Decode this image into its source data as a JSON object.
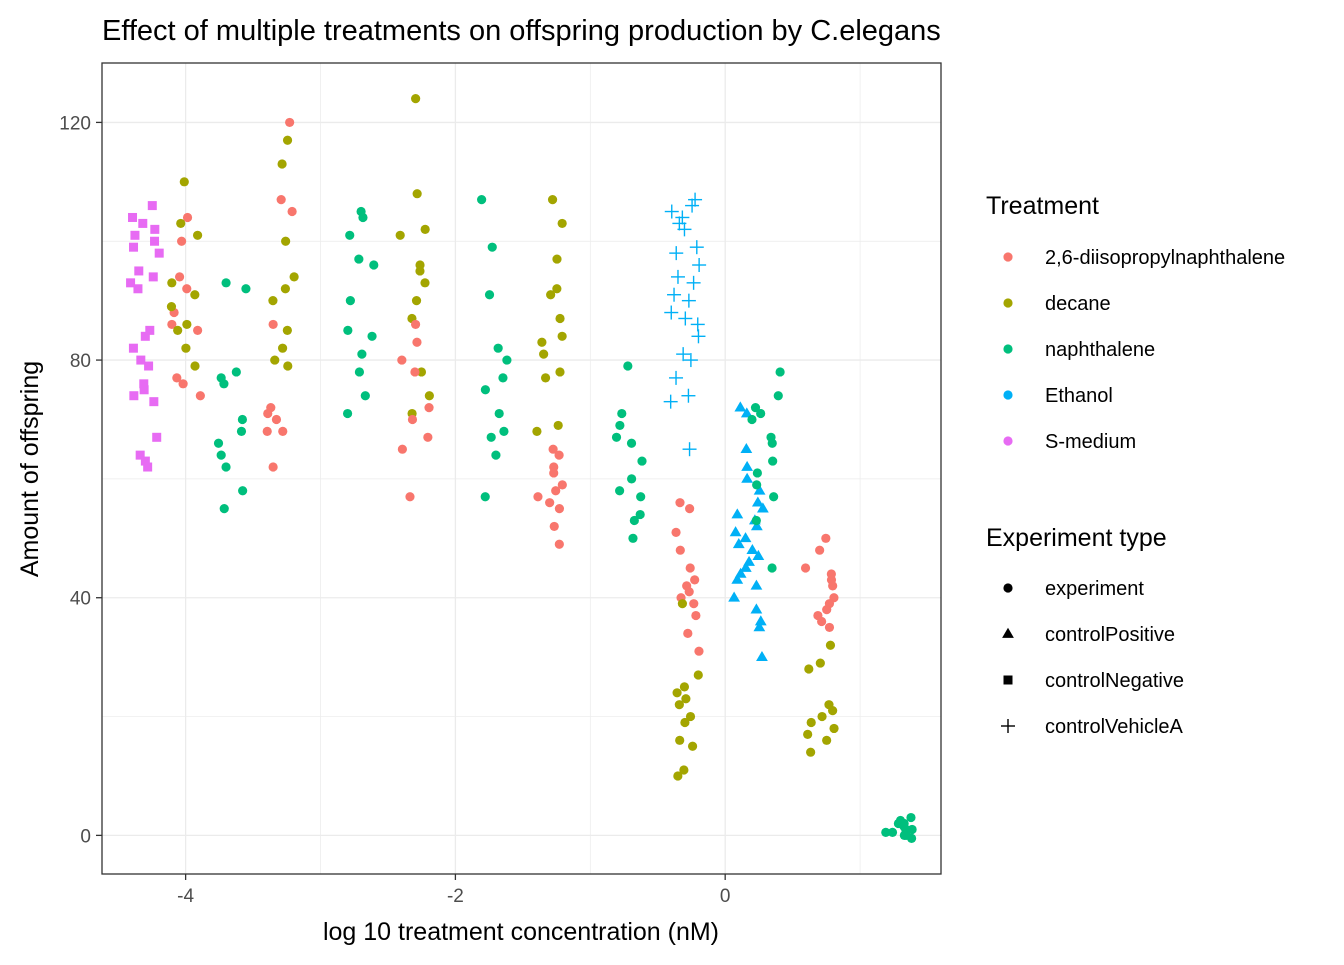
{
  "chart_data": {
    "type": "scatter",
    "title": "Effect of multiple treatments on offspring production by C.elegans",
    "xlabel": "log 10 treatment concentration (nM)",
    "ylabel": "Amount of offspring",
    "xlim": [
      -4.62,
      1.6
    ],
    "ylim": [
      -6.5,
      130
    ],
    "x_ticks": [
      -4,
      -2,
      0
    ],
    "y_ticks": [
      0,
      40,
      80,
      120
    ],
    "grid": true,
    "legend_position": "right",
    "legend": {
      "color": {
        "title": "Treatment",
        "entries": [
          {
            "label": "2,6-diisopropylnaphthalene",
            "color": "#F8766D"
          },
          {
            "label": "decane",
            "color": "#A3A500"
          },
          {
            "label": "naphthalene",
            "color": "#00BF7D"
          },
          {
            "label": "Ethanol",
            "color": "#00B0F6"
          },
          {
            "label": "S-medium",
            "color": "#E76BF3"
          }
        ]
      },
      "shape": {
        "title": "Experiment type",
        "entries": [
          {
            "label": "experiment",
            "shape": "circle"
          },
          {
            "label": "controlPositive",
            "shape": "triangle"
          },
          {
            "label": "controlNegative",
            "shape": "square"
          },
          {
            "label": "controlVehicleA",
            "shape": "plus"
          }
        ]
      }
    },
    "series": [
      {
        "treatment": "S-medium",
        "type": "controlNegative",
        "x_center": -4.3,
        "values": [
          106,
          104,
          103,
          102,
          101,
          100,
          99,
          98,
          95,
          94,
          93,
          92,
          85,
          84,
          82,
          80,
          79,
          76,
          75,
          74,
          73,
          67,
          64,
          63,
          62
        ]
      },
      {
        "treatment": "2,6-diisopropylnaphthalene",
        "type": "experiment",
        "x_center": -4.0,
        "values": [
          104,
          100,
          94,
          92,
          88,
          86,
          85,
          77,
          76,
          74
        ]
      },
      {
        "treatment": "decane",
        "type": "experiment",
        "x_center": -4.0,
        "values": [
          110,
          103,
          101,
          93,
          91,
          89,
          86,
          85,
          82,
          79
        ]
      },
      {
        "treatment": "naphthalene",
        "type": "experiment",
        "x_center": -3.65,
        "values": [
          93,
          92,
          78,
          77,
          76,
          70,
          68,
          66,
          64,
          62,
          58,
          55
        ]
      },
      {
        "treatment": "2,6-diisopropylnaphthalene",
        "type": "experiment",
        "x_center": -3.3,
        "values": [
          120,
          107,
          105,
          86,
          72,
          71,
          70,
          68,
          68,
          62
        ]
      },
      {
        "treatment": "decane",
        "type": "experiment",
        "x_center": -3.3,
        "values": [
          117,
          113,
          100,
          94,
          92,
          90,
          85,
          82,
          80,
          79
        ]
      },
      {
        "treatment": "naphthalene",
        "type": "experiment",
        "x_center": -2.7,
        "values": [
          105,
          104,
          101,
          97,
          96,
          90,
          85,
          84,
          81,
          78,
          74,
          71
        ]
      },
      {
        "treatment": "decane",
        "type": "experiment",
        "x_center": -2.3,
        "values": [
          124,
          108,
          102,
          101,
          96,
          95,
          93,
          90,
          87,
          78,
          74,
          71
        ]
      },
      {
        "treatment": "2,6-diisopropylnaphthalene",
        "type": "experiment",
        "x_center": -2.3,
        "values": [
          86,
          83,
          80,
          78,
          72,
          70,
          67,
          65,
          57
        ]
      },
      {
        "treatment": "naphthalene",
        "type": "experiment",
        "x_center": -1.7,
        "values": [
          107,
          99,
          91,
          82,
          80,
          77,
          75,
          71,
          68,
          67,
          64,
          57
        ]
      },
      {
        "treatment": "decane",
        "type": "experiment",
        "x_center": -1.3,
        "values": [
          107,
          103,
          97,
          92,
          91,
          87,
          84,
          83,
          81,
          78,
          77,
          69,
          68
        ]
      },
      {
        "treatment": "2,6-diisopropylnaphthalene",
        "type": "experiment",
        "x_center": -1.3,
        "values": [
          65,
          64,
          62,
          61,
          59,
          58,
          57,
          56,
          55,
          52,
          49
        ]
      },
      {
        "treatment": "naphthalene",
        "type": "experiment",
        "x_center": -0.7,
        "values": [
          79,
          71,
          69,
          67,
          66,
          63,
          60,
          58,
          57,
          54,
          53,
          50
        ]
      },
      {
        "treatment": "Ethanol",
        "type": "controlVehicleA",
        "x_center": -0.3,
        "values": [
          107,
          106,
          105,
          104,
          103,
          102,
          99,
          98,
          96,
          94,
          93,
          91,
          90,
          88,
          87,
          86,
          84,
          81,
          80,
          77,
          74,
          73,
          65
        ]
      },
      {
        "treatment": "2,6-diisopropylnaphthalene",
        "type": "experiment",
        "x_center": -0.3,
        "values": [
          56,
          55,
          51,
          48,
          45,
          43,
          42,
          41,
          40,
          39,
          37,
          34,
          31
        ]
      },
      {
        "treatment": "decane",
        "type": "experiment",
        "x_center": -0.3,
        "values": [
          39,
          27,
          25,
          24,
          23,
          22,
          20,
          19,
          16,
          15,
          11,
          10
        ]
      },
      {
        "treatment": "Ethanol",
        "type": "controlPositive",
        "x_center": 0.17,
        "values": [
          72,
          71,
          65,
          62,
          60,
          58,
          56,
          55,
          54,
          53,
          52,
          51,
          50,
          49,
          48,
          47,
          46,
          45,
          44,
          43,
          42,
          40,
          38,
          36,
          35,
          30
        ]
      },
      {
        "treatment": "naphthalene",
        "type": "experiment",
        "x_center": 0.3,
        "values": [
          78,
          74,
          72,
          71,
          70,
          67,
          66,
          63,
          61,
          59,
          57,
          53,
          45
        ]
      },
      {
        "treatment": "2,6-diisopropylnaphthalene",
        "type": "experiment",
        "x_center": 0.7,
        "values": [
          50,
          48,
          45,
          44,
          43,
          42,
          40,
          39,
          38,
          37,
          36,
          35
        ]
      },
      {
        "treatment": "decane",
        "type": "experiment",
        "x_center": 0.7,
        "values": [
          32,
          29,
          28,
          22,
          21,
          20,
          19,
          18,
          17,
          16,
          14
        ]
      },
      {
        "treatment": "naphthalene",
        "type": "experiment",
        "x_center": 1.3,
        "values": [
          3,
          2.5,
          2,
          2,
          1.5,
          1,
          1,
          0.5,
          0.5,
          0,
          0,
          -0.5
        ]
      }
    ]
  }
}
